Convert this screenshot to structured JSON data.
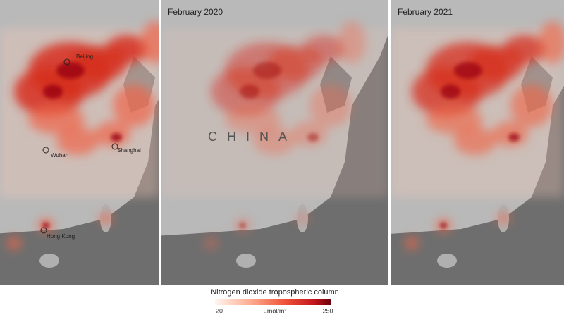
{
  "panels": [
    {
      "cities": [
        "Beijing",
        "Wuhan",
        "Shanghai",
        "Hong Kong"
      ]
    },
    {
      "label": "February 2020",
      "country": "CHINA"
    },
    {
      "label": "February 2021"
    }
  ],
  "legend": {
    "title": "Nitrogen dioxide tropospheric column",
    "min": 20,
    "max": 250,
    "unit": "µmol/m²"
  }
}
